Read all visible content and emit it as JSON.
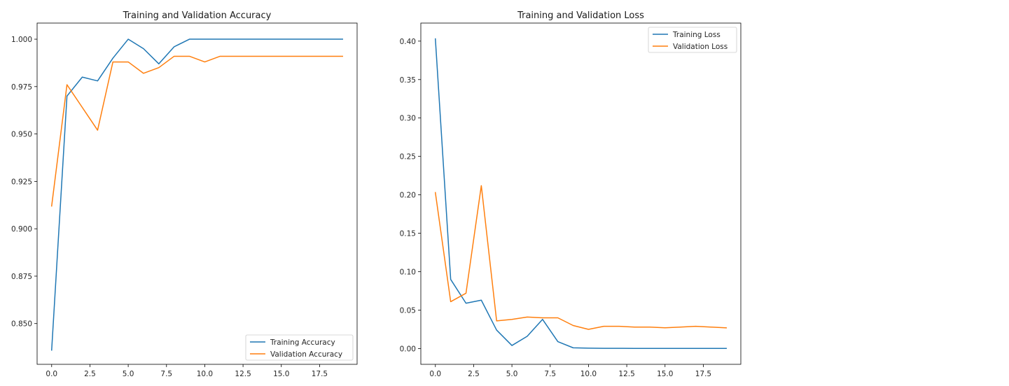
{
  "chart_data": [
    {
      "type": "line",
      "title": "Training and Validation Accuracy",
      "xlabel": "",
      "ylabel": "",
      "x": [
        0,
        1,
        2,
        3,
        4,
        5,
        6,
        7,
        8,
        9,
        10,
        11,
        12,
        13,
        14,
        15,
        16,
        17,
        18,
        19
      ],
      "xlim": [
        -0.95,
        19.95
      ],
      "ylim": [
        0.8285,
        1.0085
      ],
      "xticks": [
        0.0,
        2.5,
        5.0,
        7.5,
        10.0,
        12.5,
        15.0,
        17.5
      ],
      "xtick_labels": [
        "0.0",
        "2.5",
        "5.0",
        "7.5",
        "10.0",
        "12.5",
        "15.0",
        "17.5"
      ],
      "yticks": [
        0.85,
        0.875,
        0.9,
        0.925,
        0.95,
        0.975,
        1.0
      ],
      "ytick_labels": [
        "0.850",
        "0.875",
        "0.900",
        "0.925",
        "0.950",
        "0.975",
        "1.000"
      ],
      "grid": false,
      "legend_position": "lower-right",
      "series": [
        {
          "name": "Training Accuracy",
          "color": "#1f77b4",
          "values": [
            0.836,
            0.97,
            0.98,
            0.978,
            0.99,
            1.0,
            0.995,
            0.987,
            0.996,
            1.0,
            1.0,
            1.0,
            1.0,
            1.0,
            1.0,
            1.0,
            1.0,
            1.0,
            1.0,
            1.0
          ]
        },
        {
          "name": "Validation Accuracy",
          "color": "#ff7f0e",
          "values": [
            0.912,
            0.976,
            0.964,
            0.952,
            0.988,
            0.988,
            0.982,
            0.985,
            0.991,
            0.991,
            0.988,
            0.991,
            0.991,
            0.991,
            0.991,
            0.991,
            0.991,
            0.991,
            0.991,
            0.991
          ]
        }
      ]
    },
    {
      "type": "line",
      "title": "Training and Validation Loss",
      "xlabel": "",
      "ylabel": "",
      "x": [
        0,
        1,
        2,
        3,
        4,
        5,
        6,
        7,
        8,
        9,
        10,
        11,
        12,
        13,
        14,
        15,
        16,
        17,
        18,
        19
      ],
      "xlim": [
        -0.95,
        19.95
      ],
      "ylim": [
        -0.0205,
        0.4235
      ],
      "xticks": [
        0.0,
        2.5,
        5.0,
        7.5,
        10.0,
        12.5,
        15.0,
        17.5
      ],
      "xtick_labels": [
        "0.0",
        "2.5",
        "5.0",
        "7.5",
        "10.0",
        "12.5",
        "15.0",
        "17.5"
      ],
      "yticks": [
        0.0,
        0.05,
        0.1,
        0.15,
        0.2,
        0.25,
        0.3,
        0.35,
        0.4
      ],
      "ytick_labels": [
        "0.00",
        "0.05",
        "0.10",
        "0.15",
        "0.20",
        "0.25",
        "0.30",
        "0.35",
        "0.40"
      ],
      "grid": false,
      "legend_position": "upper-right",
      "series": [
        {
          "name": "Training Loss",
          "color": "#1f77b4",
          "values": [
            0.403,
            0.09,
            0.059,
            0.063,
            0.024,
            0.004,
            0.016,
            0.038,
            0.009,
            0.001,
            0.0005,
            0.0003,
            0.0003,
            0.0002,
            0.0002,
            0.0002,
            0.0002,
            0.0002,
            0.0002,
            0.0002
          ]
        },
        {
          "name": "Validation Loss",
          "color": "#ff7f0e",
          "values": [
            0.203,
            0.061,
            0.072,
            0.212,
            0.036,
            0.038,
            0.041,
            0.04,
            0.04,
            0.03,
            0.025,
            0.029,
            0.029,
            0.028,
            0.028,
            0.027,
            0.028,
            0.029,
            0.028,
            0.027
          ]
        }
      ]
    }
  ]
}
